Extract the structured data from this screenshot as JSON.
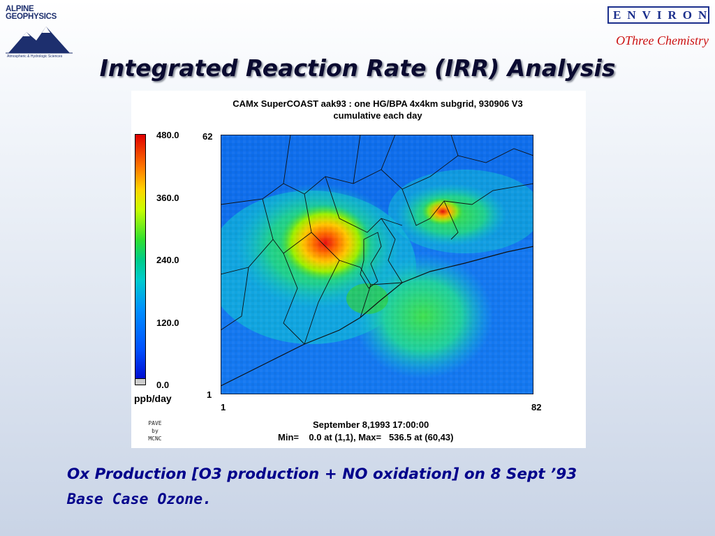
{
  "logos": {
    "alpine": {
      "line1": "ALPINE",
      "line2": "GEOPHYSICS",
      "sub": "Atmospheric & Hydrologic Sciences"
    },
    "environ": "ENVIRON"
  },
  "tagline": "OThree Chemistry",
  "slide_title": "Integrated Reaction Rate (IRR) Analysis",
  "plot": {
    "title_line1": "CAMx SuperCOAST aak93 : one HG/BPA 4x4km subgrid, 930906 V3",
    "title_line2": "cumulative each day",
    "colorbar_labels": [
      "480.0",
      "360.0",
      "240.0",
      "120.0",
      "0.0"
    ],
    "units": "ppb/day",
    "y_axis": {
      "top": "62",
      "bottom": "1"
    },
    "x_axis": {
      "left": "1",
      "right": "82"
    },
    "credit": [
      "PAVE",
      "by",
      "MCNC"
    ],
    "timestamp": "September 8,1993 17:00:00",
    "minmax": "Min=    0.0 at (1,1), Max=   536.5 at (60,43)"
  },
  "caption": {
    "line1": "Ox Production [O3 production + NO oxidation] on 8 Sept ’93",
    "line2": "Base Case Ozone."
  },
  "colors": {
    "title_text": "#0a0a30",
    "caption_text": "#00008b",
    "tagline": "#cc1111",
    "environ": "#1b2f8c"
  }
}
